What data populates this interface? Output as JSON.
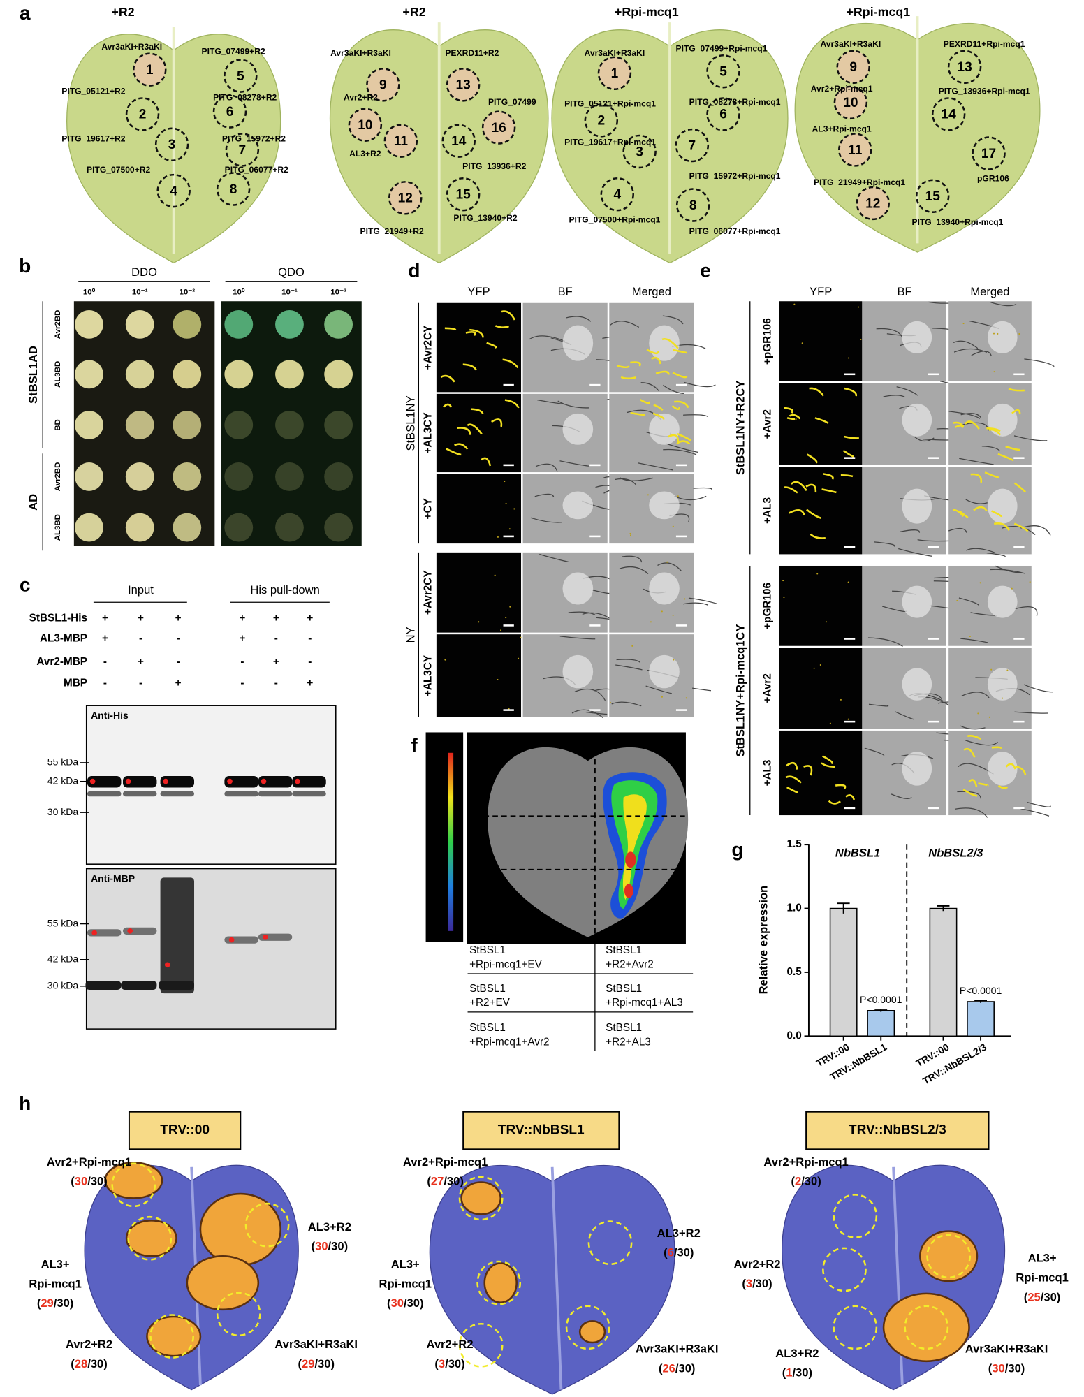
{
  "panel_a": {
    "label": "a",
    "leaves": [
      {
        "title": "+R2",
        "spots": [
          {
            "number": 1,
            "label": "Avr3aKI+R3aKI"
          },
          {
            "number": 5,
            "label": "PITG_07499+R2"
          },
          {
            "number": 2,
            "label": "PITG_05121+R2"
          },
          {
            "number": 6,
            "label": "PITG_08278+R2"
          },
          {
            "number": 3,
            "label": "PITG_19617+R2"
          },
          {
            "number": 7,
            "label": "PITG_15972+R2"
          },
          {
            "number": 4,
            "label": "PITG_07500+R2"
          },
          {
            "number": 8,
            "label": "PITG_06077+R2"
          }
        ]
      },
      {
        "title": "+R2",
        "spots": [
          {
            "number": 9,
            "label": "Avr3aKI+R3aKI"
          },
          {
            "number": 13,
            "label": "PEXRD11+R2"
          },
          {
            "number": 10,
            "label": "Avr2+R2"
          },
          {
            "number": 16,
            "label": "PITG_07499"
          },
          {
            "number": 11,
            "label": "AL3+R2"
          },
          {
            "number": 14,
            "label": "PITG_13936+R2"
          },
          {
            "number": 12,
            "label": "PITG_21949+R2"
          },
          {
            "number": 15,
            "label": "PITG_13940+R2"
          }
        ]
      },
      {
        "title": "+Rpi-mcq1",
        "spots": [
          {
            "number": 1,
            "label": "Avr3aKI+R3aKI"
          },
          {
            "number": 5,
            "label": "PITG_07499+Rpi-mcq1"
          },
          {
            "number": 2,
            "label": "PITG_05121+Rpi-mcq1"
          },
          {
            "number": 6,
            "label": "PITG_08278+Rpi-mcq1"
          },
          {
            "number": 3,
            "label": "PITG_19617+Rpi-mcq1"
          },
          {
            "number": 7,
            "label": "PITG_15972+Rpi-mcq1"
          },
          {
            "number": 4,
            "label": "PITG_07500+Rpi-mcq1"
          },
          {
            "number": 8,
            "label": "PITG_06077+Rpi-mcq1"
          }
        ]
      },
      {
        "title": "+Rpi-mcq1",
        "spots": [
          {
            "number": 9,
            "label": "Avr3aKI+R3aKI"
          },
          {
            "number": 13,
            "label": "PEXRD11+Rpi-mcq1"
          },
          {
            "number": 10,
            "label": "Avr2+Rpi-mcq1"
          },
          {
            "number": 14,
            "label": "PITG_13936+Rpi-mcq1"
          },
          {
            "number": 11,
            "label": "AL3+Rpi-mcq1"
          },
          {
            "number": 17,
            "label": "pGR106"
          },
          {
            "number": 12,
            "label": "PITG_21949+Rpi-mcq1"
          },
          {
            "number": 15,
            "label": "PITG_13940+Rpi-mcq1"
          }
        ]
      }
    ]
  },
  "panel_b": {
    "label": "b",
    "media": [
      "DDO",
      "QDO"
    ],
    "dilutions": [
      "10⁰",
      "10⁻¹",
      "10⁻²"
    ],
    "groups": [
      {
        "name": "StBSL1AD",
        "rows": [
          "Avr2BD",
          "AL3BD",
          "BD"
        ]
      },
      {
        "name": "AD",
        "rows": [
          "Avr2BD",
          "AL3BD"
        ]
      }
    ]
  },
  "panel_c": {
    "label": "c",
    "headers": [
      "Input",
      "His pull-down"
    ],
    "rows": [
      {
        "name": "StBSL1-His",
        "signs": [
          "+",
          "+",
          "+",
          "+",
          "+",
          "+"
        ]
      },
      {
        "name": "AL3-MBP",
        "signs": [
          "+",
          "-",
          "-",
          "+",
          "-",
          "-"
        ]
      },
      {
        "name": "Avr2-MBP",
        "signs": [
          "-",
          "+",
          "-",
          "-",
          "+",
          "-"
        ]
      },
      {
        "name": "MBP",
        "signs": [
          "-",
          "-",
          "+",
          "-",
          "-",
          "+"
        ]
      }
    ],
    "blots": [
      {
        "antibody": "Anti-His",
        "markers": [
          "55 kDa",
          "42 kDa",
          "30 kDa"
        ]
      },
      {
        "antibody": "Anti-MBP",
        "markers": [
          "55 kDa",
          "42 kDa",
          "30 kDa"
        ]
      }
    ]
  },
  "panel_d": {
    "label": "d",
    "columns": [
      "YFP",
      "BF",
      "Merged"
    ],
    "groups": [
      {
        "name": "StBSL1NY",
        "rows": [
          "+Avr2CY",
          "+AL3CY",
          "+CY"
        ]
      },
      {
        "name": "NY",
        "rows": [
          "+Avr2CY",
          "+AL3CY"
        ]
      }
    ]
  },
  "panel_e": {
    "label": "e",
    "columns": [
      "YFP",
      "BF",
      "Merged"
    ],
    "groups": [
      {
        "name": "StBSL1NY+R2CY",
        "rows": [
          "+pGR106",
          "+Avr2",
          "+AL3"
        ]
      },
      {
        "name": "StBSL1NY+Rpi-mcq1CY",
        "rows": [
          "+pGR106",
          "+Avr2",
          "+AL3"
        ]
      }
    ]
  },
  "panel_f": {
    "label": "f",
    "table": [
      [
        [
          "StBSL1",
          "+Rpi-mcq1+EV"
        ],
        [
          "StBSL1",
          "+R2+Avr2"
        ]
      ],
      [
        [
          "StBSL1",
          "+R2+EV"
        ],
        [
          "StBSL1",
          "+Rpi-mcq1+AL3"
        ]
      ],
      [
        [
          "StBSL1",
          "+Rpi-mcq1+Avr2"
        ],
        [
          "StBSL1",
          "+R2+AL3"
        ]
      ]
    ]
  },
  "chart_data": {
    "type": "bar",
    "label": "g",
    "ylabel": "Relative expression",
    "groups": [
      "NbBSL1",
      "NbBSL2/3"
    ],
    "categories": [
      "TRV::00",
      "TRV::NbBSL1",
      "TRV::00",
      "TRV::NbBSL2/3"
    ],
    "values": [
      1.0,
      0.2,
      1.0,
      0.27
    ],
    "errors": [
      0.04,
      0.01,
      0.02,
      0.01
    ],
    "colors": [
      "#d4d4d4",
      "#a8c9ec",
      "#d4d4d4",
      "#a8c9ec"
    ],
    "annotations": [
      null,
      "P<0.0001",
      null,
      "P<0.0001"
    ],
    "ylim": [
      0,
      1.5
    ],
    "yticks": [
      {
        "value": 0,
        "label": "0.0"
      },
      {
        "value": 0.5,
        "label": "0.5"
      },
      {
        "value": 1,
        "label": "1.0"
      },
      {
        "value": 1.5,
        "label": "1.5"
      }
    ]
  },
  "panel_h": {
    "label": "h",
    "leaves": [
      {
        "title": "TRV::00",
        "labels": [
          {
            "lines": [
              "Avr2+Rpi-mcq1"
            ],
            "score": "(30/30)"
          },
          {
            "lines": [
              "AL3+R2"
            ],
            "score": "(30/30)"
          },
          {
            "lines": [
              "AL3+",
              "Rpi-mcq1"
            ],
            "score": "(29/30)"
          },
          {
            "lines": [
              "Avr2+R2"
            ],
            "score": "(28/30)"
          },
          {
            "lines": [
              "Avr3aKI+R3aKI"
            ],
            "score": "(29/30)"
          }
        ]
      },
      {
        "title": "TRV::NbBSL1",
        "labels": [
          {
            "lines": [
              "Avr2+Rpi-mcq1"
            ],
            "score": "(27/30)"
          },
          {
            "lines": [
              "AL3+R2"
            ],
            "score": "(6/30)"
          },
          {
            "lines": [
              "AL3+",
              "Rpi-mcq1"
            ],
            "score": "(30/30)"
          },
          {
            "lines": [
              "Avr2+R2"
            ],
            "score": "(3/30)"
          },
          {
            "lines": [
              "Avr3aKI+R3aKI"
            ],
            "score": "(26/30)"
          }
        ]
      },
      {
        "title": "TRV::NbBSL2/3",
        "labels": [
          {
            "lines": [
              "Avr2+Rpi-mcq1"
            ],
            "score": "(2/30)"
          },
          {
            "lines": [
              "Avr2+R2"
            ],
            "score": "(3/30)"
          },
          {
            "lines": [
              "AL3+",
              "Rpi-mcq1"
            ],
            "score": "(25/30)"
          },
          {
            "lines": [
              "AL3+R2"
            ],
            "score": "(1/30)"
          },
          {
            "lines": [
              "Avr3aKI+R3aKI"
            ],
            "score": "(30/30)"
          }
        ]
      }
    ]
  }
}
